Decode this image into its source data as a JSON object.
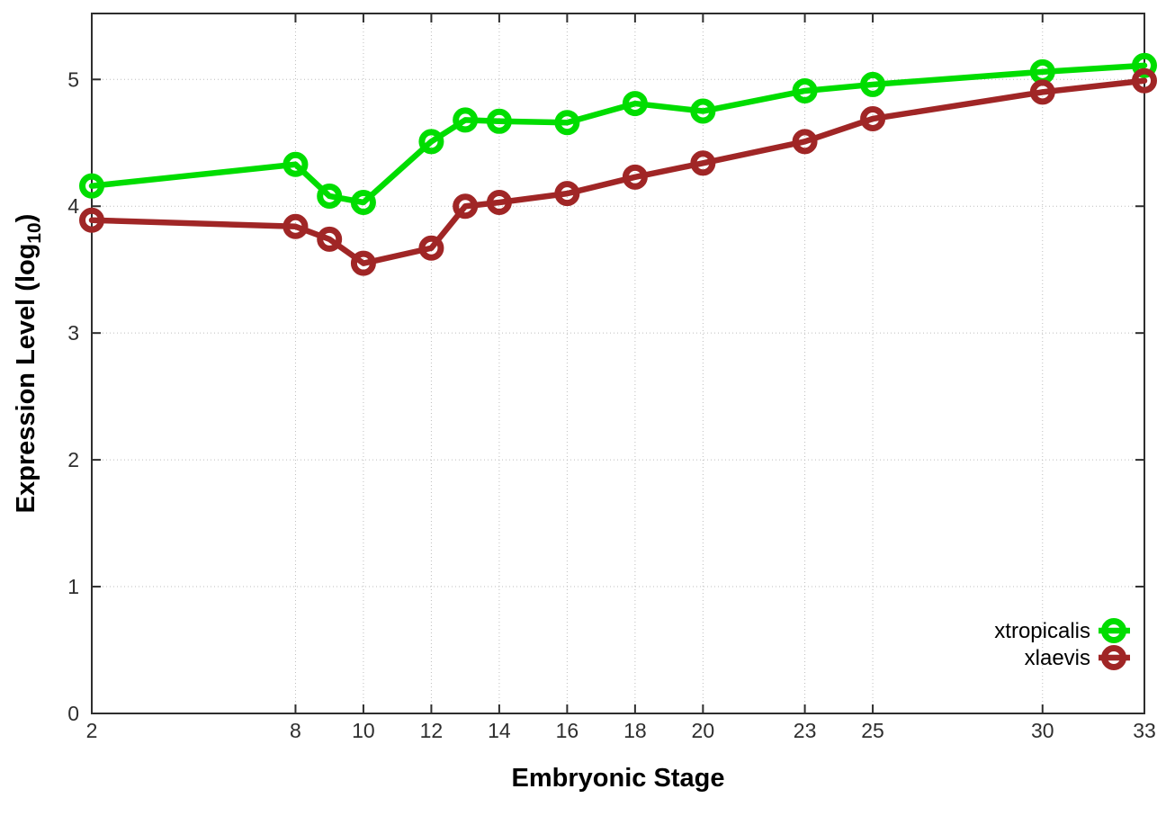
{
  "chart_data": {
    "type": "line",
    "title": "",
    "xlabel": "Embryonic Stage",
    "ylabel": "Expression Level (log10)",
    "ylabel_parts": {
      "main": "Expression Level (log",
      "sub": "10",
      "close": ")"
    },
    "xlim": [
      2,
      33
    ],
    "ylim": [
      0,
      5.52
    ],
    "x_ticks": [
      2,
      8,
      10,
      12,
      14,
      16,
      18,
      20,
      23,
      25,
      30,
      33
    ],
    "y_ticks": [
      0,
      1,
      2,
      3,
      4,
      5
    ],
    "grid": true,
    "legend_position": "inside-bottom-right",
    "legend_entries": [
      "xtropicalis",
      "xlaevis"
    ],
    "series": [
      {
        "name": "xtropicalis",
        "color": "#00dd00",
        "x": [
          2,
          8,
          9,
          10,
          12,
          13,
          14,
          16,
          18,
          20,
          23,
          25,
          30,
          33
        ],
        "y": [
          4.16,
          4.33,
          4.08,
          4.03,
          4.51,
          4.68,
          4.67,
          4.66,
          4.81,
          4.75,
          4.91,
          4.96,
          5.06,
          5.11
        ]
      },
      {
        "name": "xlaevis",
        "color": "#a02626",
        "x": [
          2,
          8,
          9,
          10,
          12,
          13,
          14,
          16,
          18,
          20,
          23,
          25,
          30,
          33
        ],
        "y": [
          3.89,
          3.84,
          3.74,
          3.55,
          3.67,
          4.0,
          4.03,
          4.1,
          4.23,
          4.34,
          4.51,
          4.69,
          4.9,
          4.99
        ]
      }
    ]
  },
  "style": {
    "background": "#ffffff",
    "grid_color": "#bdbdbd",
    "axis_color": "#2e2e2e",
    "tick_label_color": "#2e2e2e",
    "text_color": "#000000"
  }
}
